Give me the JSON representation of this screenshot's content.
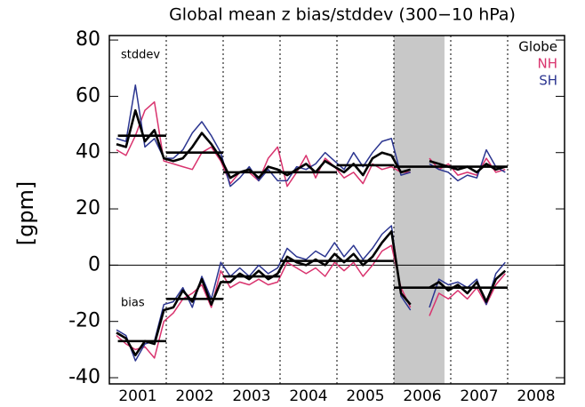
{
  "chart_data": {
    "type": "line",
    "title": "Global mean z bias/stddev (300−10 hPa)",
    "y_label": "[gpm]",
    "annotations": {
      "stddev": "stddev",
      "bias": "bias"
    },
    "x": [
      2001.125,
      2001.292,
      2001.458,
      2001.625,
      2001.792,
      2001.958,
      2002.125,
      2002.292,
      2002.458,
      2002.625,
      2002.792,
      2002.958,
      2003.125,
      2003.292,
      2003.458,
      2003.625,
      2003.792,
      2003.958,
      2004.125,
      2004.292,
      2004.458,
      2004.625,
      2004.792,
      2004.958,
      2005.125,
      2005.292,
      2005.458,
      2005.625,
      2005.792,
      2005.958,
      2006.125,
      2006.292,
      2006.458,
      2006.625,
      2006.792,
      2006.958,
      2007.125,
      2007.292,
      2007.458,
      2007.625,
      2007.792,
      2007.958
    ],
    "series": [
      {
        "name": "Globe",
        "color": "#000000",
        "width": 2.6,
        "stddev": [
          43,
          42,
          55,
          44,
          48,
          38,
          37,
          38,
          42,
          47,
          43,
          38,
          31,
          33,
          34,
          31,
          35,
          34,
          32,
          34,
          36,
          33,
          37,
          35,
          33,
          36,
          32,
          38,
          40,
          39,
          33,
          34,
          null,
          37,
          36,
          35,
          34,
          35,
          33,
          36,
          34,
          35
        ],
        "bias": [
          -24,
          -26,
          -32,
          -27,
          -28,
          -16,
          -15,
          -9,
          -13,
          -5,
          -14,
          -6,
          -6,
          -3,
          -5,
          -2,
          -5,
          -3,
          3,
          1,
          0,
          2,
          0,
          4,
          1,
          4,
          0,
          3,
          8,
          12,
          -10,
          -14,
          null,
          -8,
          -6,
          -9,
          -7,
          -10,
          -6,
          -13,
          -5,
          -2
        ]
      },
      {
        "name": "NH",
        "color": "#d9336e",
        "width": 1.5,
        "stddev": [
          41,
          39,
          46,
          55,
          58,
          37,
          36,
          35,
          34,
          40,
          42,
          37,
          29,
          33,
          33,
          30,
          38,
          42,
          28,
          33,
          39,
          31,
          38,
          35,
          31,
          33,
          29,
          36,
          34,
          35,
          33,
          33,
          null,
          38,
          34,
          36,
          32,
          33,
          32,
          38,
          33,
          34
        ],
        "bias": [
          -25,
          -28,
          -30,
          -29,
          -33,
          -20,
          -17,
          -12,
          -10,
          -7,
          -15,
          -2,
          -8,
          -6,
          -7,
          -5,
          -7,
          -6,
          1,
          -1,
          -3,
          -1,
          -4,
          1,
          -2,
          1,
          -4,
          0,
          5,
          7,
          -8,
          -15,
          null,
          -18,
          -10,
          -12,
          -9,
          -12,
          -8,
          -14,
          -7,
          -3
        ]
      },
      {
        "name": "SH",
        "color": "#2b3590",
        "width": 1.5,
        "stddev": [
          45,
          44,
          64,
          42,
          45,
          38,
          38,
          41,
          47,
          51,
          46,
          40,
          28,
          31,
          35,
          30,
          34,
          30,
          30,
          35,
          34,
          36,
          40,
          37,
          34,
          40,
          35,
          40,
          44,
          45,
          32,
          33,
          null,
          36,
          34,
          33,
          30,
          32,
          31,
          41,
          35,
          33
        ],
        "bias": [
          -23,
          -25,
          -34,
          -28,
          -27,
          -14,
          -13,
          -8,
          -15,
          -4,
          -12,
          1,
          -4,
          -1,
          -4,
          0,
          -3,
          -1,
          6,
          3,
          2,
          5,
          3,
          8,
          3,
          7,
          2,
          6,
          11,
          14,
          -11,
          -16,
          null,
          -15,
          -5,
          -7,
          -6,
          -8,
          -5,
          -14,
          -3,
          1
        ]
      }
    ],
    "mean_lines": {
      "starts": [
        2001.15,
        2002,
        2003,
        2005,
        2006,
        2001.15,
        2002,
        2003,
        2004,
        2006
      ],
      "ends": [
        2002,
        2003,
        2005,
        2006,
        2008,
        2002,
        2003,
        2004,
        2006,
        2008
      ],
      "values": [
        46,
        40,
        33,
        35.5,
        35,
        -27,
        -12,
        -4,
        1.5,
        -8
      ]
    },
    "shade": [
      2006.0,
      2006.89
    ],
    "year_lines": [
      2002,
      2003,
      2004,
      2005,
      2006,
      2007,
      2008
    ],
    "zero_line": 0,
    "xlim": [
      2001,
      2009
    ],
    "ylim": [
      -42.2,
      81.6
    ],
    "xticks": [
      {
        "value": 2001.5,
        "label": "2001"
      },
      {
        "value": 2002.5,
        "label": "2002"
      },
      {
        "value": 2003.5,
        "label": "2003"
      },
      {
        "value": 2004.5,
        "label": "2004"
      },
      {
        "value": 2005.5,
        "label": "2005"
      },
      {
        "value": 2006.5,
        "label": "2006"
      },
      {
        "value": 2007.5,
        "label": "2007"
      },
      {
        "value": 2008.5,
        "label": "2008"
      }
    ],
    "yticks": [
      -40,
      -20,
      0,
      20,
      40,
      60,
      80
    ],
    "legend": "upper right"
  }
}
